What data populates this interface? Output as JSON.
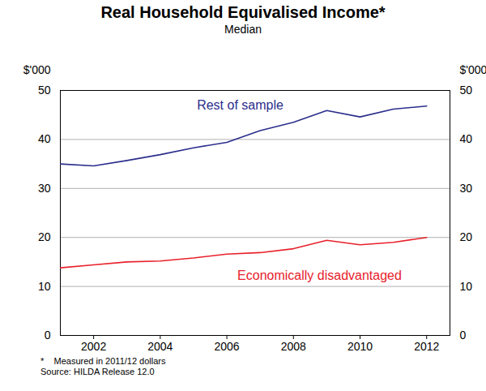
{
  "chart_data": {
    "type": "line",
    "title": "Real Household Equivalised Income*",
    "subtitle": "Median",
    "y_label": "$'000",
    "y2_label": "$'000",
    "notes": [
      "*    Measured in 2011/12 dollars",
      "Source: HILDA Release 12.0"
    ],
    "x": [
      2001,
      2002,
      2003,
      2004,
      2005,
      2006,
      2007,
      2008,
      2009,
      2010,
      2011,
      2012
    ],
    "xlim": [
      2001,
      2012.7
    ],
    "xticks": [
      2002,
      2004,
      2006,
      2008,
      2010,
      2012
    ],
    "ylim": [
      0,
      50
    ],
    "yticks": [
      0,
      10,
      20,
      30,
      40,
      50
    ],
    "y2lim": [
      0,
      50
    ],
    "y2ticks": [
      0,
      10,
      20,
      30,
      40,
      50
    ],
    "grid": true,
    "series": [
      {
        "name": "Rest of sample",
        "color": "#2b2e8c",
        "values": [
          35.0,
          34.6,
          35.7,
          36.9,
          38.3,
          39.4,
          41.8,
          43.5,
          45.9,
          44.6,
          46.2,
          46.8
        ]
      },
      {
        "name": "Economically disadvantaged",
        "color": "#e8212b",
        "values": [
          13.8,
          14.4,
          15.0,
          15.2,
          15.8,
          16.6,
          16.9,
          17.7,
          19.4,
          18.5,
          19.0,
          20.0
        ]
      }
    ]
  }
}
